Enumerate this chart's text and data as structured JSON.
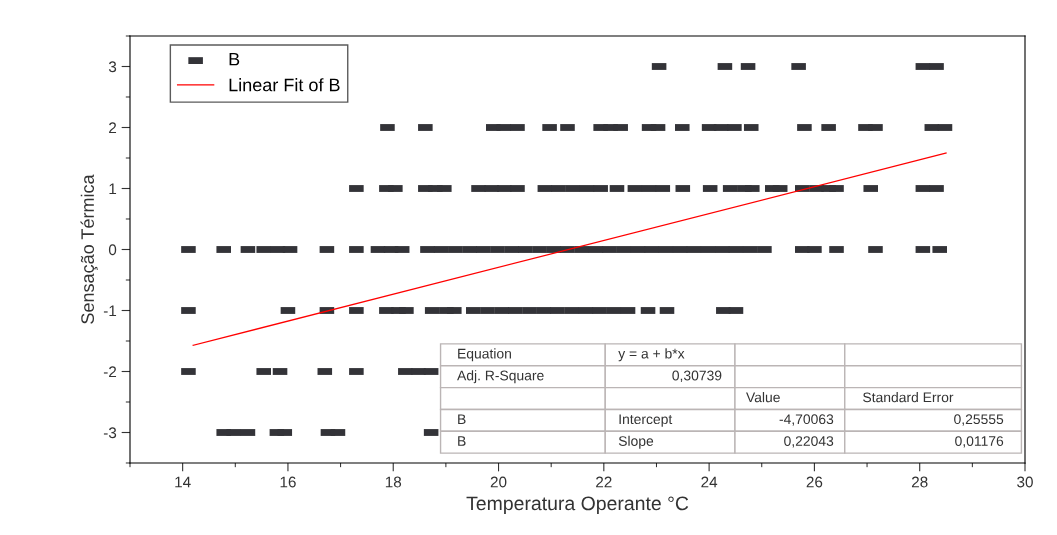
{
  "chart_data": {
    "type": "scatter",
    "xlabel": "Temperatura Operante °C",
    "ylabel": "Sensação Térmica",
    "xlim": [
      13,
      30
    ],
    "xticks": [
      14,
      16,
      18,
      20,
      22,
      24,
      26,
      28,
      30
    ],
    "ylim": [
      -3.5,
      3.5
    ],
    "yticks": [
      -3,
      -2,
      -1,
      0,
      1,
      2,
      3
    ],
    "grid": false,
    "legend": "top left",
    "marker": "square",
    "series": [
      {
        "name": "B",
        "color": "#333338",
        "x": [
          23.05,
          24.3,
          24.74,
          25.7,
          28.06,
          28.32,
          17.89,
          18.61,
          19.9,
          20.1,
          20.36,
          20.97,
          21.31,
          21.94,
          22.13,
          22.32,
          22.86,
          23.03,
          23.49,
          24.0,
          24.23,
          24.48,
          24.8,
          25.81,
          26.27,
          26.97,
          27.16,
          28.23,
          28.48,
          17.3,
          17.87,
          18.04,
          18.61,
          18.8,
          18.97,
          19.62,
          19.87,
          20.11,
          20.36,
          20.88,
          21.14,
          21.41,
          21.68,
          21.94,
          22.25,
          22.59,
          22.86,
          23.12,
          23.5,
          24.02,
          24.4,
          24.67,
          24.82,
          25.2,
          25.35,
          25.77,
          26.04,
          26.27,
          26.42,
          27.07,
          28.06,
          28.32,
          14.11,
          14.78,
          15.24,
          15.54,
          15.81,
          16.04,
          16.74,
          17.3,
          17.71,
          17.96,
          18.17,
          18.65,
          18.91,
          19.18,
          19.45,
          19.71,
          19.98,
          20.25,
          20.51,
          20.78,
          21.05,
          21.31,
          21.58,
          21.85,
          22.11,
          22.38,
          22.65,
          22.91,
          23.18,
          23.45,
          23.71,
          23.98,
          24.25,
          24.51,
          24.78,
          25.05,
          25.77,
          26.0,
          26.42,
          27.16,
          28.06,
          28.38,
          14.11,
          16.0,
          16.74,
          17.3,
          17.87,
          18.1,
          18.25,
          18.74,
          19.01,
          19.16,
          19.52,
          19.79,
          20.06,
          20.32,
          20.59,
          20.86,
          21.12,
          21.39,
          21.66,
          21.92,
          22.19,
          22.46,
          22.84,
          23.2,
          24.27,
          24.51,
          14.11,
          15.54,
          15.85,
          16.7,
          17.3,
          18.23,
          18.48,
          18.72,
          14.78,
          14.97,
          15.24,
          15.79,
          15.94,
          16.76,
          16.95,
          18.72
        ],
        "values": [
          3,
          3,
          3,
          3,
          3,
          3,
          2,
          2,
          2,
          2,
          2,
          2,
          2,
          2,
          2,
          2,
          2,
          2,
          2,
          2,
          2,
          2,
          2,
          2,
          2,
          2,
          2,
          2,
          2,
          1,
          1,
          1,
          1,
          1,
          1,
          1,
          1,
          1,
          1,
          1,
          1,
          1,
          1,
          1,
          1,
          1,
          1,
          1,
          1,
          1,
          1,
          1,
          1,
          1,
          1,
          1,
          1,
          1,
          1,
          1,
          1,
          1,
          0,
          0,
          0,
          0,
          0,
          0,
          0,
          0,
          0,
          0,
          0,
          0,
          0,
          0,
          0,
          0,
          0,
          0,
          0,
          0,
          0,
          0,
          0,
          0,
          0,
          0,
          0,
          0,
          0,
          0,
          0,
          0,
          0,
          0,
          0,
          0,
          0,
          0,
          0,
          0,
          0,
          0,
          -1,
          -1,
          -1,
          -1,
          -1,
          -1,
          -1,
          -1,
          -1,
          -1,
          -1,
          -1,
          -1,
          -1,
          -1,
          -1,
          -1,
          -1,
          -1,
          -1,
          -1,
          -1,
          -1,
          -1,
          -1,
          -1,
          -2,
          -2,
          -2,
          -2,
          -2,
          -2,
          -2,
          -2,
          -3,
          -3,
          -3,
          -3,
          -3,
          -3,
          -3,
          -3
        ]
      },
      {
        "name": "Linear Fit of B",
        "type": "line",
        "color": "#ff0000",
        "x": [
          14.2,
          28.5
        ],
        "values": [
          -1.57,
          1.58
        ],
        "marker": "none",
        "line_style": "solid"
      }
    ],
    "annotations": [
      "Equation\ty = a + b*x\t\t",
      "Adj. R-Square\t0,30739\t\t",
      "\t\tValue\tStandard Error",
      "B\tIntercept\t-4,70063\t0,25555",
      "B\tSlope\t0,22043\t0,01176"
    ]
  }
}
